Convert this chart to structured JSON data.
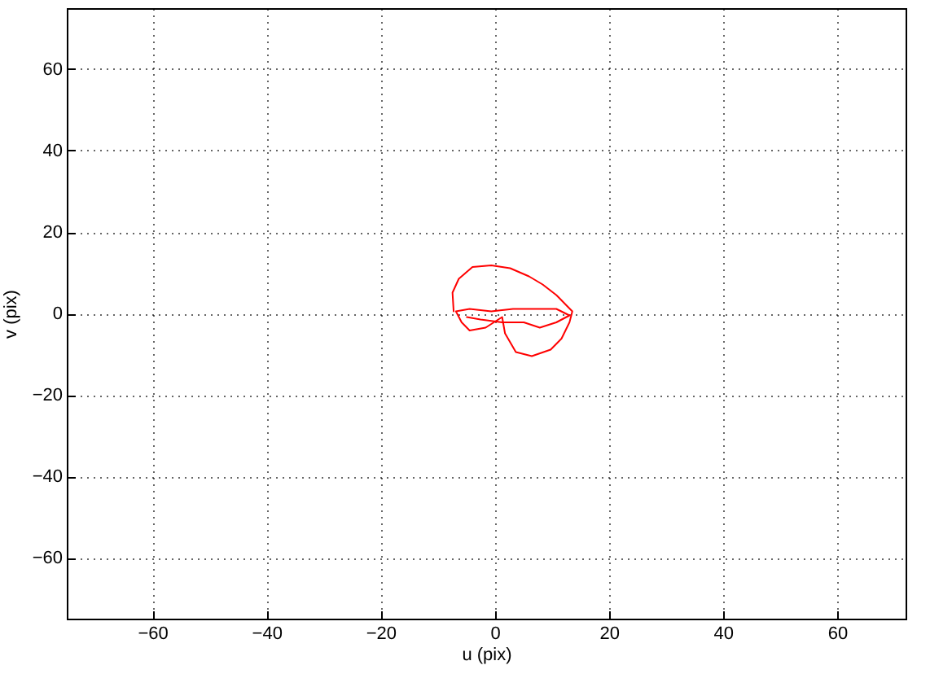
{
  "chart_data": {
    "type": "line",
    "xlabel": "u (pix)",
    "ylabel": "v (pix)",
    "xlim": [
      -75,
      72
    ],
    "ylim": [
      -75,
      75
    ],
    "xticks": [
      -60,
      -40,
      -20,
      0,
      20,
      40,
      60
    ],
    "yticks": [
      -60,
      -40,
      -20,
      0,
      20,
      40,
      60
    ],
    "grid": true,
    "line_style": "solid",
    "series": [
      {
        "color": "#ff0000",
        "x": [
          -7.2,
          -7.4,
          -6.3,
          -3.9,
          -0.6,
          2.7,
          6.0,
          8.4,
          10.8,
          13.6,
          13.1,
          11.7,
          9.8,
          6.5,
          3.7,
          1.8,
          1.3,
          -1.6,
          -4.4,
          -5.8,
          -6.8,
          -4.4,
          -0.6,
          3.2,
          7.0,
          10.8,
          13.1,
          10.8,
          7.9,
          5.1,
          1.3,
          -2.5,
          -4.9
        ],
        "values": [
          0.5,
          5.1,
          8.5,
          11.4,
          11.8,
          11.1,
          9.1,
          7.1,
          4.5,
          0.5,
          -2.2,
          -6.2,
          -8.9,
          -10.5,
          -9.5,
          -4.9,
          -0.9,
          -3.5,
          -4.2,
          -2.2,
          0.5,
          1.1,
          0.5,
          1.1,
          1.1,
          1.1,
          -0.5,
          -2.2,
          -3.5,
          -2.2,
          -2.2,
          -1.5,
          -0.9
        ]
      }
    ]
  }
}
